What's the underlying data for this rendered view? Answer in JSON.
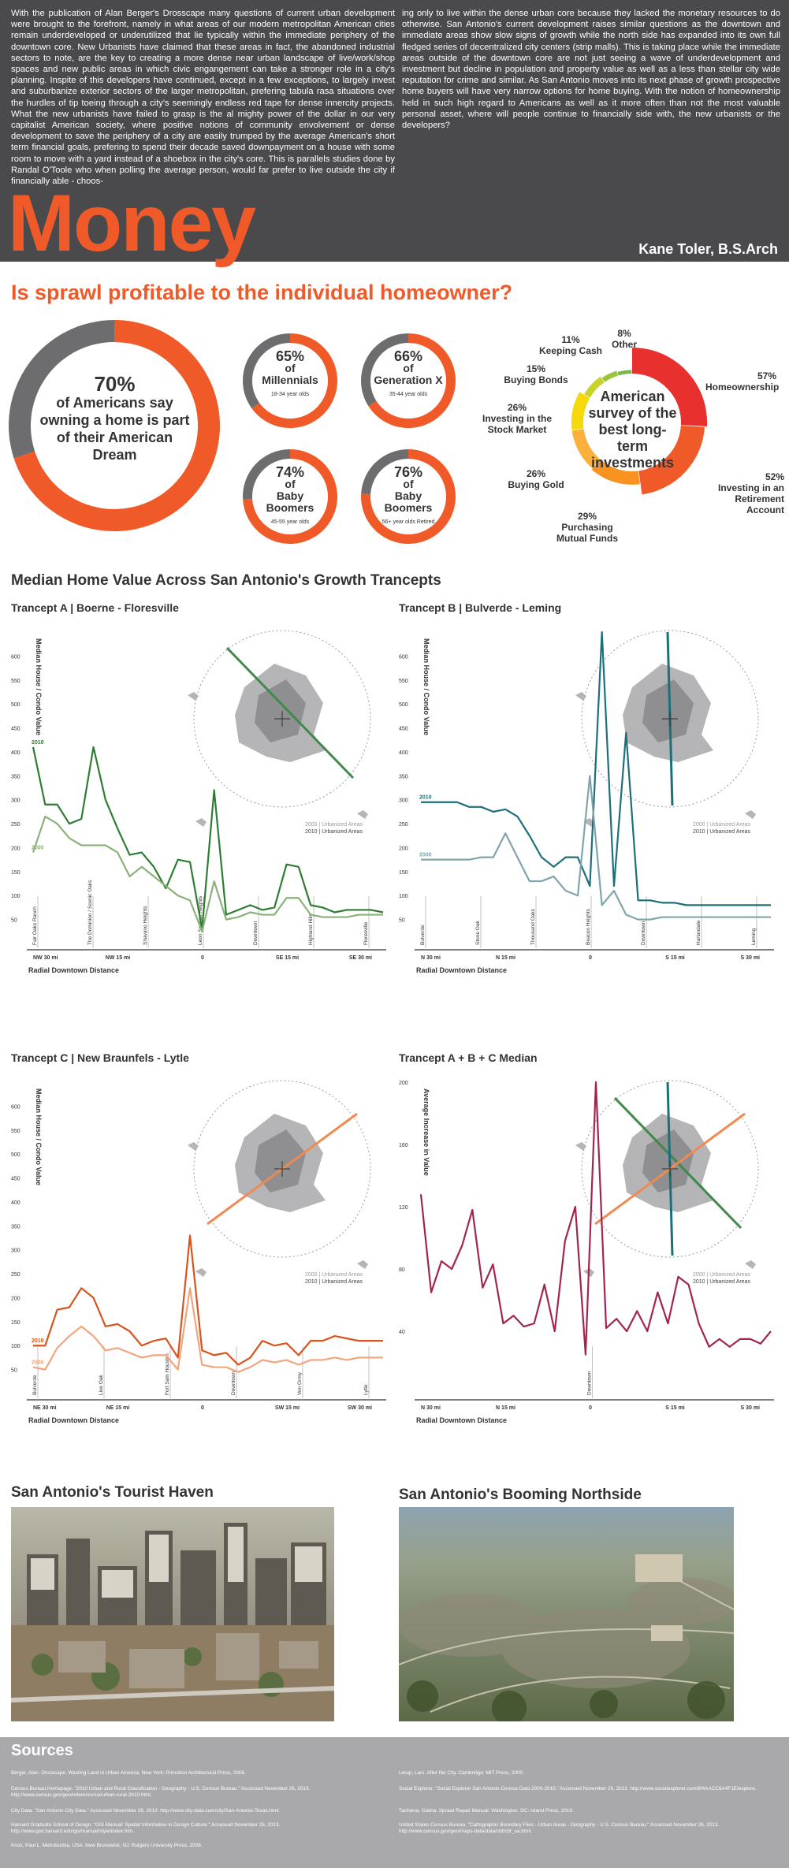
{
  "header": {
    "intro_left": "With the publication of Alan Berger's Drosscape many questions of current urban development were brought to the forefront, namely in what areas of our modern metropolitan American cities remain underdeveloped or underutilized that lie typically within the immediate periphery of the downtown core. New Urbanists have claimed that these areas in fact, the abandoned industrial sectors to note, are the key to creating a more dense near urban landscape of live/work/shop spaces and new public areas in which civic engangement can take a stronger role in a city's planning. Inspite of this developers have continued, except in a few exceptions, to largely invest and suburbanize exterior sectors of the larger metropolitan, prefering tabula rasa situations over the hurdles of tip toeing through a city's seemingly endless red tape for dense innercity projects. What the new urbanists have failed to grasp is the al mighty power of the dollar in our very capitalist American society, where positive notions of community envolvement or dense development to save the periphery of a city are easily trumped by the average American's short term financial goals, prefering to spend their decade saved downpayment on a house with some room to move with a yard instead of a shoebox in the city's core. This is parallels studies done by Randal O'Toole who when polling the average person, would far prefer to live outside the city if financially able - choos-",
    "intro_right": "ing only to live within the dense urban core because they lacked the monetary resources to do otherwise. San Antonio's current development raises similar questions as the downtown and immediate areas show slow signs of growth while the north side has expanded into its own full fledged series of decentralized city centers (strip malls). This is taking place while the immediate areas outside of the downtown core are not just seeing a wave of underdevelopment and investment but decline in population and property value as well as a less than stellar city wide reputation for crime and similar. As San Antonio moves into its next phase of growth prospective home buyers will have very narrow options for home buying. With the notion of homeownership held in such high regard to Americans as well as it more often than not the most valuable personal asset, where will people continue to financially side with, the new urbanists or the developers?",
    "title": "Money",
    "author": "Kane Toler, B.S.Arch"
  },
  "question": "Is sprawl profitable to the individual homeowner?",
  "dream": {
    "big": {
      "pct": "70%",
      "text": "of Americans say owning a home is part of their American Dream",
      "value": 70
    },
    "small": [
      {
        "pct": "65%",
        "of": "of",
        "group": "Millennials",
        "sub": "18-34 year olds",
        "value": 65
      },
      {
        "pct": "66%",
        "of": "of",
        "group": "Generation X",
        "sub": "35-44 year olds",
        "value": 66
      },
      {
        "pct": "74%",
        "of": "of",
        "group": "Baby Boomers",
        "sub": "45-55 year olds",
        "value": 74
      },
      {
        "pct": "76%",
        "of": "of",
        "group": "Baby Boomers",
        "sub": "56+ year olds Retired",
        "value": 76
      }
    ]
  },
  "survey": {
    "center": "American survey of the best long-term investments",
    "items": [
      {
        "pct": "57%",
        "label": "Homeownership",
        "value": 57,
        "color": "#e8312f"
      },
      {
        "pct": "52%",
        "label": "Investing in an Retirement Account",
        "value": 52,
        "color": "#f05a28"
      },
      {
        "pct": "29%",
        "label": "Purchasing Mutual Funds",
        "value": 29,
        "color": "#f7931e"
      },
      {
        "pct": "26%",
        "label": "Buying Gold",
        "value": 26,
        "color": "#fbb03b"
      },
      {
        "pct": "26%",
        "label": "Investing in the Stock Market",
        "value": 26,
        "color": "#f5d90a"
      },
      {
        "pct": "15%",
        "label": "Buying Bonds",
        "value": 15,
        "color": "#c9d22a"
      },
      {
        "pct": "11%",
        "label": "Keeping Cash",
        "value": 11,
        "color": "#9bc53d"
      },
      {
        "pct": "8%",
        "label": "Other",
        "value": 8,
        "color": "#7ab648"
      }
    ]
  },
  "section_title": "Median Home Value Across San Antonio's Growth Trancepts",
  "legend": {
    "y2000": "2000 | Urbanized Areas",
    "y2010": "2010 | Urbanized Areas"
  },
  "chart_data": [
    {
      "type": "line",
      "title": "Trancept A | Boerne - Floresville",
      "ylabel": "Median House / Condo Value",
      "xlabel": "Radial Downtown Distance",
      "ylim": [
        0,
        650
      ],
      "yticks": [
        "50",
        "100",
        "150",
        "200",
        "250",
        "300",
        "350",
        "400",
        "450",
        "500",
        "550",
        "600"
      ],
      "xticks": [
        "NW 30 mi",
        "NW 15 mi",
        "0",
        "SE 15 mi",
        "SE 30 mi"
      ],
      "places": [
        "Fair Oaks Ranch",
        "The Dominion / Scenic Oaks",
        "Shavano Heights",
        "Leon Springs Heights",
        "Downtown",
        "Highland Hills",
        "Floresville"
      ],
      "series": [
        {
          "name": "2010",
          "color": "#2e7d32",
          "values": [
            410,
            290,
            290,
            250,
            260,
            410,
            300,
            240,
            185,
            190,
            160,
            115,
            175,
            170,
            30,
            320,
            60,
            70,
            80,
            70,
            75,
            165,
            160,
            80,
            75,
            65,
            70,
            70,
            70,
            65
          ]
        },
        {
          "name": "2000",
          "color": "#8bb17a",
          "values": [
            190,
            265,
            250,
            220,
            205,
            205,
            205,
            190,
            140,
            160,
            140,
            120,
            100,
            90,
            25,
            130,
            50,
            55,
            65,
            60,
            60,
            95,
            95,
            60,
            55,
            55,
            55,
            60,
            60,
            60
          ]
        }
      ]
    },
    {
      "type": "line",
      "title": "Trancept B | Bulverde - Leming",
      "ylabel": "Median House / Condo Value",
      "xlabel": "Radial Downtown Distance",
      "ylim": [
        0,
        650
      ],
      "xticks": [
        "N 30 mi",
        "N 15 mi",
        "0",
        "S 15 mi",
        "S 30 mi"
      ],
      "places": [
        "Bulverde",
        "Stone Oak",
        "Thousand Oaks",
        "Beacon Heights",
        "Downtown",
        "Harlandale",
        "Leming"
      ],
      "series": [
        {
          "name": "2010",
          "color": "#1d6f7a",
          "values": [
            295,
            295,
            295,
            295,
            285,
            285,
            275,
            280,
            265,
            225,
            180,
            160,
            180,
            180,
            120,
            650,
            120,
            440,
            90,
            90,
            85,
            85,
            80,
            80,
            80,
            80,
            80,
            80,
            80,
            80
          ]
        },
        {
          "name": "2000",
          "color": "#7fa5ab",
          "values": [
            175,
            175,
            175,
            175,
            175,
            180,
            180,
            230,
            180,
            130,
            130,
            140,
            110,
            100,
            350,
            80,
            110,
            60,
            50,
            50,
            55,
            55,
            55,
            55,
            55,
            55,
            55,
            55,
            55,
            55
          ]
        }
      ]
    },
    {
      "type": "line",
      "title": "Trancept C | New Braunfels - Lytle",
      "ylabel": "Median House / Condo Value",
      "xlabel": "Radial Downtown Distance",
      "ylim": [
        0,
        650
      ],
      "xticks": [
        "NE 30 mi",
        "NE 15 mi",
        "0",
        "SW 15 mi",
        "SW 30 mi"
      ],
      "places": [
        "Bulverde",
        "Live Oak",
        "Fort Sam Houston",
        "Downtown",
        "Von Ormy",
        "Lytle"
      ],
      "series": [
        {
          "name": "2010",
          "color": "#d9531e",
          "values": [
            100,
            100,
            175,
            180,
            220,
            200,
            140,
            145,
            130,
            100,
            110,
            115,
            75,
            330,
            90,
            80,
            85,
            60,
            75,
            110,
            100,
            105,
            80,
            110,
            110,
            120,
            115,
            110,
            110,
            110
          ]
        },
        {
          "name": "2000",
          "color": "#f2a57c",
          "values": [
            55,
            50,
            95,
            120,
            140,
            120,
            90,
            95,
            85,
            75,
            80,
            80,
            50,
            220,
            60,
            55,
            55,
            45,
            55,
            70,
            65,
            70,
            60,
            70,
            70,
            75,
            70,
            75,
            75,
            75
          ]
        }
      ]
    },
    {
      "type": "line",
      "title": "Trancept A + B + C Median",
      "ylabel": "Average Increase in Value",
      "xlabel": "Radial Downtown Distance",
      "ylim": [
        0,
        200
      ],
      "yticks": [
        "40",
        "80",
        "120",
        "160",
        "200"
      ],
      "xticks": [
        "N 30 mi",
        "N 15 mi",
        "0",
        "S 15 mi",
        "S 30 mi"
      ],
      "places": [
        "Downtown"
      ],
      "series": [
        {
          "name": "Median",
          "color": "#a3254e",
          "values": [
            128,
            65,
            85,
            80,
            95,
            118,
            68,
            83,
            45,
            50,
            43,
            45,
            70,
            40,
            98,
            120,
            25,
            200,
            42,
            48,
            40,
            53,
            40,
            65,
            45,
            75,
            70,
            45,
            30,
            35,
            30,
            35,
            35,
            32,
            40
          ]
        }
      ]
    }
  ],
  "photos": {
    "left_title": "San Antonio's Tourist Haven",
    "right_title": "San Antonio's Booming Northside"
  },
  "sources": {
    "title": "Sources",
    "left": [
      "Berger, Alan. Drosscape: Wasting Land in Urban America. New York: Princeton Architectural Press, 2006.",
      "Census Bureau Homepage. \"2010 Urban and Rural Classification - Geography - U.S. Census Bureau.\" Accessed November 26, 2013. http://www.census.gov/geo/reference/ua/urban-rural-2010.html.",
      "City Data. \"San Antonio City Data.\" Accessed November 26, 2013. http://www.city-data.com/city/San-Antonio-Texas.html.",
      "Harvard Graduate School of Design. \"GIS Manual: Spatial Information in Design Culture.\" Accessed November 26, 2013. http://www.gsd.harvard.edu/gis/manual/style/index.htm.",
      "Knox, Paul L. Metroburbia, USA. New Brunswick, NJ: Rutgers University Press, 2008."
    ],
    "right": [
      "Lerup, Lars. After the City. Cambridge: MIT Press, 2000.",
      "Social Explorer. \"Social Explorer San Antonio Census Data 2000-2010.\" Accessed November 26, 2013. http://www.socialexplorer.com/6f4AACC6A4F1E/explore.",
      "Tachieva, Galina. Sprawl Repair Manual. Washington, DC: Island Press, 2010.",
      "United States Census Bureau. \"Cartographic Boundary Files - Urban Areas - Geography - U.S. Census Bureau.\" Accessed November 26, 2013. http://www.census.gov/geo/maps-data/data/cbf/cbf_ua.html."
    ]
  }
}
